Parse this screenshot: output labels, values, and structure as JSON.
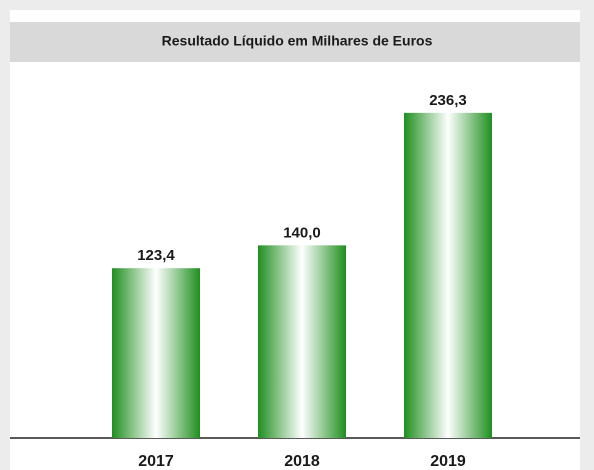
{
  "chart_data": {
    "type": "bar",
    "title": "Resultado Líquido em Milhares de Euros",
    "categories": [
      "2017",
      "2018",
      "2019"
    ],
    "values": [
      123.4,
      140.0,
      236.3
    ],
    "value_labels": [
      "123,4",
      "140,0",
      "236,3"
    ],
    "color": "#1f8f1f",
    "ylim": [
      0,
      250
    ]
  }
}
